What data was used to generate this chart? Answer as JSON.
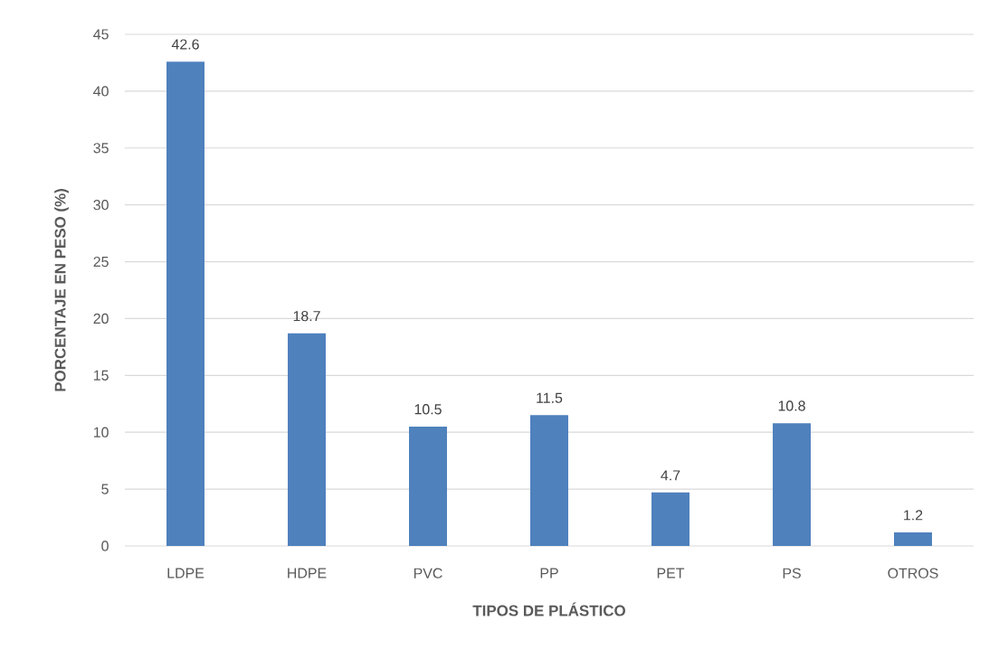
{
  "chart_data": {
    "type": "bar",
    "xlabel": "TIPOS DE PLÁSTICO",
    "ylabel": "PORCENTAJE EN PESO (%)",
    "categories": [
      "LDPE",
      "HDPE",
      "PVC",
      "PP",
      "PET",
      "PS",
      "OTROS"
    ],
    "values": [
      42.6,
      18.7,
      10.5,
      11.5,
      4.7,
      10.8,
      1.2
    ],
    "color": "#4f81bd",
    "ylim": [
      0,
      45
    ],
    "yticks": [
      0,
      5,
      10,
      15,
      20,
      25,
      30,
      35,
      40,
      45
    ],
    "grid": "y",
    "data_labels": true
  }
}
